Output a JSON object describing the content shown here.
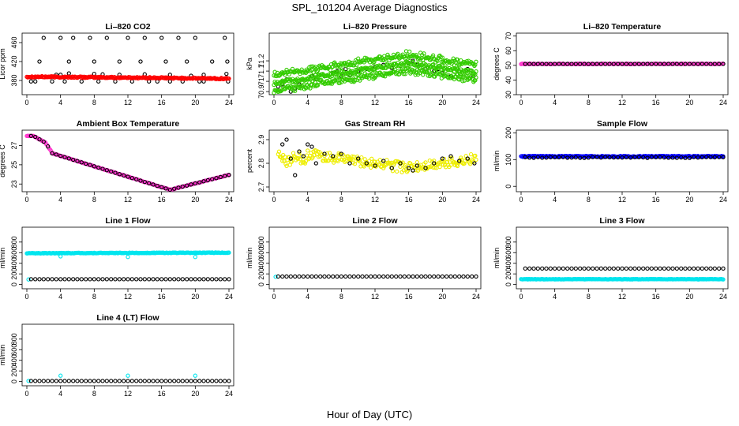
{
  "title": "SPL_101204  Average Diagnostics",
  "x_axis_label": "Hour of Day (UTC)",
  "colors": {
    "black": "#000000",
    "red": "#ff0000",
    "green": "#33cc00",
    "magenta": "#ff33cc",
    "yellow": "#eeee00",
    "blue": "#0000ff",
    "cyan": "#00e5ee"
  },
  "chart_data": [
    {
      "type": "scatter",
      "title": "Li–820 CO2",
      "ylabel": "Licor ppm",
      "xlim": [
        0,
        24
      ],
      "ylim": [
        350,
        480
      ],
      "xticks": [
        0,
        4,
        8,
        12,
        16,
        20,
        24
      ],
      "yticks": [
        380,
        420,
        460
      ],
      "series": [
        {
          "name": "black",
          "color": "#000000",
          "points": [
            [
              0.5,
              378
            ],
            [
              1,
              378
            ],
            [
              1.5,
              420
            ],
            [
              2,
              470
            ],
            [
              3,
              378
            ],
            [
              4,
              470
            ],
            [
              4.5,
              378
            ],
            [
              5,
              420
            ],
            [
              5.5,
              470
            ],
            [
              6.5,
              378
            ],
            [
              7.5,
              470
            ],
            [
              8,
              420
            ],
            [
              8.5,
              378
            ],
            [
              9.5,
              470
            ],
            [
              10.5,
              378
            ],
            [
              11,
              420
            ],
            [
              12,
              470
            ],
            [
              12.5,
              378
            ],
            [
              13.5,
              420
            ],
            [
              14,
              470
            ],
            [
              14.5,
              378
            ],
            [
              15.5,
              378
            ],
            [
              16,
              470
            ],
            [
              16.5,
              420
            ],
            [
              17,
              378
            ],
            [
              18,
              470
            ],
            [
              18.5,
              378
            ],
            [
              19,
              420
            ],
            [
              20,
              470
            ],
            [
              20.5,
              378
            ],
            [
              21,
              378
            ],
            [
              22,
              420
            ],
            [
              23.5,
              470
            ],
            [
              23.8,
              420
            ],
            [
              23.9,
              378
            ],
            [
              3.5,
              392
            ],
            [
              4,
              392
            ],
            [
              5,
              395
            ],
            [
              8,
              394
            ],
            [
              9,
              393
            ],
            [
              11,
              392
            ],
            [
              14,
              393
            ],
            [
              17,
              392
            ],
            [
              19.5,
              390
            ],
            [
              21,
              392
            ],
            [
              23.7,
              394
            ]
          ]
        },
        {
          "name": "red",
          "color": "#ff0000",
          "from": 0,
          "to": 24,
          "step": 0.1,
          "y0": 388,
          "y1": 384,
          "noise": 1.5
        }
      ]
    },
    {
      "type": "scatter",
      "title": "Li–820 Pressure",
      "ylabel": "kPa",
      "xlim": [
        0,
        24
      ],
      "ylim": [
        70.87,
        71.47
      ],
      "xticks": [
        0,
        4,
        8,
        12,
        16,
        20,
        24
      ],
      "yticks": [
        70.9,
        71.0,
        71.1,
        71.2
      ],
      "series": [
        {
          "name": "black",
          "color": "#000000",
          "points": [
            [
              0.5,
              70.95
            ],
            [
              1,
              70.97
            ],
            [
              1.5,
              71.02
            ],
            [
              2,
              70.9
            ],
            [
              2.5,
              70.93
            ],
            [
              3,
              70.97
            ],
            [
              4,
              71.1
            ],
            [
              4.5,
              71.05
            ],
            [
              5,
              71.02
            ],
            [
              6,
              71.05
            ],
            [
              7,
              71.08
            ],
            [
              7.5,
              71.1
            ],
            [
              8,
              71.05
            ],
            [
              8.5,
              71.12
            ],
            [
              9,
              71.06
            ],
            [
              10,
              71.1
            ],
            [
              11,
              71.12
            ],
            [
              12,
              71.14
            ],
            [
              13,
              71.16
            ],
            [
              14,
              71.13
            ],
            [
              15,
              71.15
            ],
            [
              16,
              71.18
            ],
            [
              16.5,
              71.2
            ],
            [
              17,
              71.16
            ],
            [
              18,
              71.12
            ],
            [
              19,
              71.1
            ],
            [
              19.5,
              71.12
            ],
            [
              20,
              71.08
            ],
            [
              21,
              71.05
            ],
            [
              22,
              71.1
            ],
            [
              23,
              71.12
            ],
            [
              23.7,
              71.05
            ]
          ]
        },
        {
          "name": "green",
          "color": "#33cc00",
          "from": 0,
          "to": 24,
          "step": 0.1,
          "curve": "pressure",
          "noise": 0.02
        }
      ]
    },
    {
      "type": "scatter",
      "title": "Li–820 Temperature",
      "ylabel": "degrees C",
      "xlim": [
        0,
        24
      ],
      "ylim": [
        30,
        72
      ],
      "xticks": [
        0,
        4,
        8,
        12,
        16,
        20,
        24
      ],
      "yticks": [
        30,
        40,
        50,
        60,
        70
      ],
      "series": [
        {
          "name": "magenta",
          "color": "#ff33cc",
          "from": 0,
          "to": 24,
          "step": 0.1,
          "y0": 51,
          "y1": 51,
          "noise": 0.2
        },
        {
          "name": "black",
          "color": "#000000",
          "from": 0.5,
          "to": 24,
          "step": 0.5,
          "y0": 51,
          "y1": 51,
          "noise": 0
        }
      ]
    },
    {
      "type": "scatter",
      "title": "Ambient Box Temperature",
      "ylabel": "degrees C",
      "xlim": [
        0,
        24
      ],
      "ylim": [
        22.2,
        28.6
      ],
      "xticks": [
        0,
        4,
        8,
        12,
        16,
        20,
        24
      ],
      "yticks": [
        23,
        25,
        27
      ],
      "series": [
        {
          "name": "magenta",
          "color": "#ff33cc",
          "from": 0,
          "to": 24,
          "step": 0.1,
          "curve": "ambient",
          "noise": 0.03
        },
        {
          "name": "black",
          "color": "#000000",
          "from": 0.5,
          "to": 24,
          "step": 0.5,
          "curve": "ambient",
          "noise": 0
        }
      ]
    },
    {
      "type": "scatter",
      "title": "Gas Stream RH",
      "ylabel": "percent",
      "xlim": [
        0,
        24
      ],
      "ylim": [
        2.68,
        2.94
      ],
      "xticks": [
        0,
        4,
        8,
        12,
        16,
        20,
        24
      ],
      "yticks": [
        2.7,
        2.8,
        2.9
      ],
      "series": [
        {
          "name": "yellow",
          "color": "#eeee00",
          "from": 0.5,
          "to": 24,
          "step": 0.1,
          "curve": "rh",
          "noise": 0.022
        },
        {
          "name": "black",
          "color": "#000000",
          "points": [
            [
              1,
              2.88
            ],
            [
              1.5,
              2.9
            ],
            [
              2,
              2.82
            ],
            [
              2.5,
              2.75
            ],
            [
              3,
              2.85
            ],
            [
              3.5,
              2.83
            ],
            [
              4,
              2.88
            ],
            [
              4.5,
              2.87
            ],
            [
              5,
              2.8
            ],
            [
              6,
              2.84
            ],
            [
              7,
              2.83
            ],
            [
              8,
              2.84
            ],
            [
              9,
              2.8
            ],
            [
              10,
              2.82
            ],
            [
              11,
              2.8
            ],
            [
              12,
              2.79
            ],
            [
              13,
              2.81
            ],
            [
              14,
              2.78
            ],
            [
              15,
              2.8
            ],
            [
              16,
              2.78
            ],
            [
              16.5,
              2.77
            ],
            [
              17,
              2.79
            ],
            [
              18,
              2.78
            ],
            [
              19,
              2.8
            ],
            [
              20,
              2.82
            ],
            [
              21,
              2.83
            ],
            [
              22,
              2.81
            ],
            [
              23,
              2.82
            ],
            [
              23.8,
              2.8
            ]
          ]
        }
      ]
    },
    {
      "type": "scatter",
      "title": "Sample Flow",
      "ylabel": "ml/min",
      "xlim": [
        0,
        24
      ],
      "ylim": [
        -20,
        210
      ],
      "xticks": [
        0,
        4,
        8,
        12,
        16,
        20,
        24
      ],
      "yticks": [
        0,
        100,
        200
      ],
      "series": [
        {
          "name": "blue",
          "color": "#0000ff",
          "from": 0,
          "to": 24,
          "step": 0.1,
          "y0": 112,
          "y1": 112,
          "noise": 2
        },
        {
          "name": "black",
          "color": "#000000",
          "from": 0.5,
          "to": 24,
          "step": 0.5,
          "y0": 108,
          "y1": 108,
          "noise": 2
        }
      ]
    },
    {
      "type": "scatter",
      "title": "Line 1 Flow",
      "ylabel": "ml/min",
      "xlim": [
        0,
        24
      ],
      "ylim": [
        -80,
        1080
      ],
      "xticks": [
        0,
        4,
        8,
        12,
        16,
        20,
        24
      ],
      "yticks": [
        0,
        200,
        400,
        600,
        800
      ],
      "series": [
        {
          "name": "cyan-high",
          "color": "#00e5ee",
          "from": 0,
          "to": 24,
          "step": 0.1,
          "y0": 590,
          "y1": 600,
          "noise": 6
        },
        {
          "name": "cyan-low",
          "color": "#00e5ee",
          "points": [
            [
              0.2,
              95
            ],
            [
              4,
              530
            ],
            [
              12,
              520
            ],
            [
              20,
              520
            ]
          ]
        },
        {
          "name": "black",
          "color": "#000000",
          "from": 0.5,
          "to": 24,
          "step": 0.5,
          "y0": 100,
          "y1": 100,
          "noise": 0
        }
      ]
    },
    {
      "type": "scatter",
      "title": "Line 2 Flow",
      "ylabel": "ml/min",
      "xlim": [
        0,
        24
      ],
      "ylim": [
        -80,
        1080
      ],
      "xticks": [
        0,
        4,
        8,
        12,
        16,
        20,
        24
      ],
      "yticks": [
        0,
        200,
        400,
        600,
        800
      ],
      "series": [
        {
          "name": "cyan",
          "color": "#00e5ee",
          "points": [
            [
              0.2,
              145
            ]
          ]
        },
        {
          "name": "black",
          "color": "#000000",
          "from": 0.5,
          "to": 24,
          "step": 0.5,
          "y0": 150,
          "y1": 150,
          "noise": 0
        }
      ]
    },
    {
      "type": "scatter",
      "title": "Line 3 Flow",
      "ylabel": "ml/min",
      "xlim": [
        0,
        24
      ],
      "ylim": [
        -80,
        1080
      ],
      "xticks": [
        0,
        4,
        8,
        12,
        16,
        20,
        24
      ],
      "yticks": [
        0,
        200,
        400,
        600,
        800
      ],
      "series": [
        {
          "name": "cyan",
          "color": "#00e5ee",
          "from": 0,
          "to": 24,
          "step": 0.1,
          "y0": 100,
          "y1": 100,
          "noise": 4
        },
        {
          "name": "black",
          "color": "#000000",
          "from": 0.5,
          "to": 24,
          "step": 0.5,
          "y0": 300,
          "y1": 300,
          "noise": 0
        }
      ]
    },
    {
      "type": "scatter",
      "title": "Line 4 (LT) Flow",
      "ylabel": "ml/min",
      "xlim": [
        0,
        24
      ],
      "ylim": [
        -80,
        1080
      ],
      "xticks": [
        0,
        4,
        8,
        12,
        16,
        20,
        24
      ],
      "yticks": [
        0,
        200,
        400,
        600,
        800
      ],
      "series": [
        {
          "name": "cyan",
          "color": "#00e5ee",
          "points": [
            [
              0.2,
              10
            ],
            [
              4,
              110
            ],
            [
              12,
              110
            ],
            [
              20,
              110
            ]
          ]
        },
        {
          "name": "black",
          "color": "#000000",
          "from": 0.5,
          "to": 24,
          "step": 0.5,
          "y0": 10,
          "y1": 10,
          "noise": 0
        }
      ]
    }
  ]
}
